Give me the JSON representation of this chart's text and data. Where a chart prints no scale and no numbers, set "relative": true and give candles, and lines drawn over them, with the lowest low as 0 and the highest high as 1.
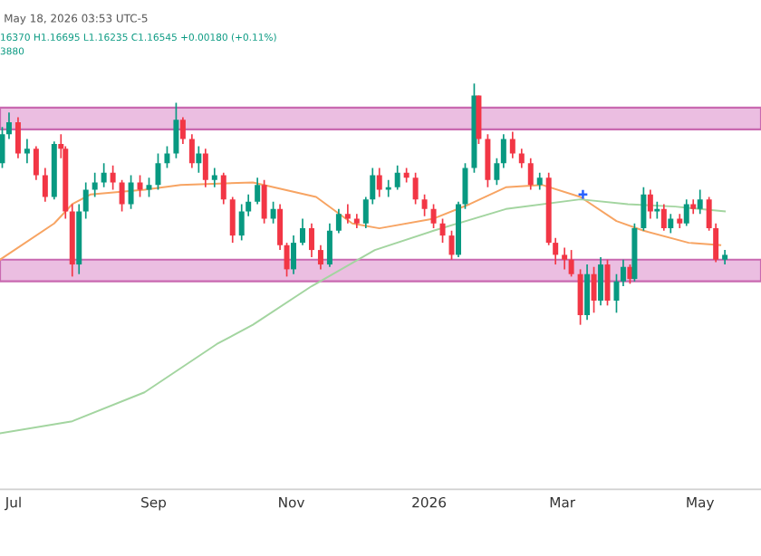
{
  "chart_data": {
    "type": "candlestick",
    "subtitle": "May 18, 2026 03:53 UTC-5",
    "annotations": [
      "16370 H1.16695 L1.16235 C1.16545 +0.00180 (+0.11%)",
      "3880"
    ],
    "relative": true,
    "tick_labels": "x",
    "grid": false,
    "xlim": [
      "2025-06-25",
      "2026-05-28"
    ],
    "xticks": [
      {
        "value": "2025-07-01",
        "label": "Jul"
      },
      {
        "value": "2025-09-01",
        "label": "Sep"
      },
      {
        "value": "2025-11-01",
        "label": "Nov"
      },
      {
        "value": "2026-01-01",
        "label": "2026"
      },
      {
        "value": "2026-03-01",
        "label": "Mar"
      },
      {
        "value": "2026-05-01",
        "label": "May"
      }
    ],
    "colors": [
      "#089981",
      "#089981",
      "#f23645",
      "#089981",
      "#f23645",
      "#f23645",
      "#089981",
      "#f23645",
      "#f23645",
      "#f23645",
      "#089981",
      "#089981",
      "#089981",
      "#089981",
      "#f23645",
      "#f23645",
      "#089981",
      "#f23645",
      "#089981",
      "#089981",
      "#089981",
      "#089981",
      "#f23645",
      "#f23645",
      "#089981",
      "#f23645",
      "#089981",
      "#f23645",
      "#f23645",
      "#089981",
      "#089981",
      "#089981",
      "#f23645",
      "#089981",
      "#f23645",
      "#f23645",
      "#089981",
      "#089981",
      "#f23645",
      "#f23645",
      "#089981",
      "#089981",
      "#f23645",
      "#f23645",
      "#089981",
      "#089981",
      "#f23645",
      "#089981",
      "#089981",
      "#f23645",
      "#f23645",
      "#f23645",
      "#f23645",
      "#f23645",
      "#f23645",
      "#089981",
      "#089981",
      "#089981",
      "#f23645",
      "#f23645",
      "#089981",
      "#089981",
      "#f23645",
      "#f23645",
      "#f23645",
      "#089981",
      "#f23645",
      "#f23645",
      "#f23645",
      "#f23645",
      "#f23645",
      "#089981",
      "#f23645",
      "#089981",
      "#f23645",
      "#089981",
      "#089981",
      "#f23645",
      "#089981",
      "#089981",
      "#f23645",
      "#089981",
      "#f23645",
      "#089981",
      "#f23645",
      "#089981",
      "#f23645",
      "#089981",
      "#f23645",
      "#f23645",
      "#089981"
    ],
    "x": [
      "2025-06-26",
      "2025-06-29",
      "2025-07-03",
      "2025-07-07",
      "2025-07-11",
      "2025-07-15",
      "2025-07-19",
      "2025-07-22",
      "2025-07-24",
      "2025-07-27",
      "2025-07-30",
      "2025-08-02",
      "2025-08-06",
      "2025-08-10",
      "2025-08-14",
      "2025-08-18",
      "2025-08-22",
      "2025-08-26",
      "2025-08-30",
      "2025-09-03",
      "2025-09-07",
      "2025-09-11",
      "2025-09-14",
      "2025-09-18",
      "2025-09-21",
      "2025-09-24",
      "2025-09-28",
      "2025-10-02",
      "2025-10-06",
      "2025-10-10",
      "2025-10-13",
      "2025-10-17",
      "2025-10-20",
      "2025-10-24",
      "2025-10-27",
      "2025-10-30",
      "2025-11-02",
      "2025-11-06",
      "2025-11-10",
      "2025-11-14",
      "2025-11-18",
      "2025-11-22",
      "2025-11-26",
      "2025-11-30",
      "2025-12-04",
      "2025-12-07",
      "2025-12-10",
      "2025-12-14",
      "2025-12-18",
      "2025-12-22",
      "2025-12-26",
      "2025-12-30",
      "2026-01-03",
      "2026-01-07",
      "2026-01-11",
      "2026-01-14",
      "2026-01-17",
      "2026-01-21",
      "2026-01-23",
      "2026-01-27",
      "2026-01-31",
      "2026-02-03",
      "2026-02-07",
      "2026-02-11",
      "2026-02-15",
      "2026-02-19",
      "2026-02-23",
      "2026-02-26",
      "2026-03-02",
      "2026-03-05",
      "2026-03-09",
      "2026-03-12",
      "2026-03-15",
      "2026-03-18",
      "2026-03-21",
      "2026-03-25",
      "2026-03-28",
      "2026-03-31",
      "2026-04-02",
      "2026-04-06",
      "2026-04-09",
      "2026-04-12",
      "2026-04-15",
      "2026-04-18",
      "2026-04-22",
      "2026-04-25",
      "2026-04-28",
      "2026-05-01",
      "2026-05-05",
      "2026-05-08",
      "2026-05-12"
    ],
    "ohlc": [
      [
        0.67,
        0.82,
        0.65,
        0.79
      ],
      [
        0.79,
        0.88,
        0.77,
        0.84
      ],
      [
        0.84,
        0.86,
        0.69,
        0.71
      ],
      [
        0.71,
        0.77,
        0.67,
        0.73
      ],
      [
        0.73,
        0.74,
        0.6,
        0.62
      ],
      [
        0.62,
        0.65,
        0.51,
        0.53
      ],
      [
        0.53,
        0.76,
        0.52,
        0.75
      ],
      [
        0.75,
        0.79,
        0.69,
        0.73
      ],
      [
        0.73,
        0.74,
        0.44,
        0.47
      ],
      [
        0.47,
        0.5,
        0.2,
        0.25
      ],
      [
        0.25,
        0.5,
        0.21,
        0.47
      ],
      [
        0.47,
        0.59,
        0.44,
        0.56
      ],
      [
        0.56,
        0.63,
        0.53,
        0.59
      ],
      [
        0.59,
        0.67,
        0.57,
        0.63
      ],
      [
        0.63,
        0.66,
        0.56,
        0.59
      ],
      [
        0.59,
        0.6,
        0.47,
        0.5
      ],
      [
        0.5,
        0.62,
        0.48,
        0.59
      ],
      [
        0.59,
        0.62,
        0.53,
        0.56
      ],
      [
        0.56,
        0.61,
        0.53,
        0.58
      ],
      [
        0.58,
        0.71,
        0.56,
        0.67
      ],
      [
        0.67,
        0.74,
        0.65,
        0.71
      ],
      [
        0.71,
        0.92,
        0.69,
        0.85
      ],
      [
        0.85,
        0.86,
        0.75,
        0.77
      ],
      [
        0.77,
        0.79,
        0.65,
        0.67
      ],
      [
        0.67,
        0.74,
        0.63,
        0.71
      ],
      [
        0.71,
        0.73,
        0.57,
        0.6
      ],
      [
        0.6,
        0.65,
        0.57,
        0.62
      ],
      [
        0.62,
        0.63,
        0.5,
        0.52
      ],
      [
        0.52,
        0.53,
        0.34,
        0.37
      ],
      [
        0.37,
        0.5,
        0.35,
        0.47
      ],
      [
        0.47,
        0.54,
        0.45,
        0.51
      ],
      [
        0.51,
        0.61,
        0.5,
        0.58
      ],
      [
        0.58,
        0.6,
        0.42,
        0.44
      ],
      [
        0.44,
        0.51,
        0.42,
        0.48
      ],
      [
        0.48,
        0.5,
        0.31,
        0.33
      ],
      [
        0.33,
        0.34,
        0.2,
        0.23
      ],
      [
        0.23,
        0.37,
        0.21,
        0.34
      ],
      [
        0.34,
        0.44,
        0.33,
        0.4
      ],
      [
        0.4,
        0.42,
        0.28,
        0.31
      ],
      [
        0.31,
        0.33,
        0.23,
        0.25
      ],
      [
        0.25,
        0.42,
        0.24,
        0.39
      ],
      [
        0.39,
        0.48,
        0.38,
        0.46
      ],
      [
        0.46,
        0.5,
        0.42,
        0.44
      ],
      [
        0.44,
        0.46,
        0.4,
        0.42
      ],
      [
        0.42,
        0.53,
        0.4,
        0.52
      ],
      [
        0.52,
        0.65,
        0.5,
        0.62
      ],
      [
        0.62,
        0.65,
        0.53,
        0.56
      ],
      [
        0.56,
        0.6,
        0.53,
        0.57
      ],
      [
        0.57,
        0.66,
        0.56,
        0.63
      ],
      [
        0.63,
        0.65,
        0.59,
        0.61
      ],
      [
        0.61,
        0.63,
        0.5,
        0.52
      ],
      [
        0.52,
        0.54,
        0.45,
        0.48
      ],
      [
        0.48,
        0.5,
        0.4,
        0.42
      ],
      [
        0.42,
        0.44,
        0.34,
        0.37
      ],
      [
        0.37,
        0.39,
        0.27,
        0.29
      ],
      [
        0.29,
        0.51,
        0.28,
        0.5
      ],
      [
        0.5,
        0.67,
        0.48,
        0.65
      ],
      [
        0.65,
        1.0,
        0.63,
        0.95
      ],
      [
        0.95,
        0.95,
        0.75,
        0.77
      ],
      [
        0.77,
        0.79,
        0.57,
        0.6
      ],
      [
        0.6,
        0.69,
        0.58,
        0.67
      ],
      [
        0.67,
        0.79,
        0.65,
        0.77
      ],
      [
        0.77,
        0.8,
        0.69,
        0.71
      ],
      [
        0.71,
        0.73,
        0.65,
        0.67
      ],
      [
        0.67,
        0.69,
        0.56,
        0.58
      ],
      [
        0.58,
        0.63,
        0.56,
        0.61
      ],
      [
        0.61,
        0.63,
        0.33,
        0.34
      ],
      [
        0.34,
        0.36,
        0.25,
        0.29
      ],
      [
        0.29,
        0.32,
        0.23,
        0.27
      ],
      [
        0.27,
        0.31,
        0.2,
        0.21
      ],
      [
        0.21,
        0.23,
        0.0,
        0.04
      ],
      [
        0.04,
        0.25,
        0.02,
        0.21
      ],
      [
        0.21,
        0.24,
        0.05,
        0.1
      ],
      [
        0.1,
        0.28,
        0.08,
        0.25
      ],
      [
        0.25,
        0.27,
        0.08,
        0.1
      ],
      [
        0.1,
        0.21,
        0.05,
        0.18
      ],
      [
        0.18,
        0.27,
        0.16,
        0.24
      ],
      [
        0.24,
        0.25,
        0.17,
        0.19
      ],
      [
        0.19,
        0.42,
        0.18,
        0.4
      ],
      [
        0.4,
        0.57,
        0.39,
        0.54
      ],
      [
        0.54,
        0.56,
        0.44,
        0.47
      ],
      [
        0.47,
        0.51,
        0.44,
        0.48
      ],
      [
        0.48,
        0.5,
        0.39,
        0.4
      ],
      [
        0.4,
        0.46,
        0.38,
        0.44
      ],
      [
        0.44,
        0.46,
        0.4,
        0.42
      ],
      [
        0.42,
        0.52,
        0.41,
        0.5
      ],
      [
        0.5,
        0.52,
        0.46,
        0.48
      ],
      [
        0.48,
        0.56,
        0.46,
        0.52
      ],
      [
        0.52,
        0.53,
        0.39,
        0.4
      ],
      [
        0.4,
        0.42,
        0.26,
        0.27
      ],
      [
        0.27,
        0.31,
        0.25,
        0.29
      ]
    ],
    "series": [
      {
        "type": "line",
        "color": "#f7a463",
        "x": [
          "2025-06-25",
          "2025-07-19",
          "2025-07-27",
          "2025-08-04",
          "2025-08-28",
          "2025-09-13",
          "2025-10-15",
          "2025-11-12",
          "2025-11-28",
          "2025-12-10",
          "2026-01-03",
          "2026-01-19",
          "2026-02-04",
          "2026-02-20",
          "2026-03-09",
          "2026-03-25",
          "2026-04-06",
          "2026-04-26",
          "2026-05-10"
        ],
        "values": [
          0.27,
          0.42,
          0.5,
          0.54,
          0.56,
          0.58,
          0.59,
          0.53,
          0.42,
          0.4,
          0.44,
          0.5,
          0.57,
          0.58,
          0.53,
          0.43,
          0.39,
          0.34,
          0.33
        ]
      },
      {
        "type": "line",
        "color": "#a3d5a0",
        "x": [
          "2025-06-25",
          "2025-07-27",
          "2025-08-28",
          "2025-09-29",
          "2025-10-15",
          "2025-11-10",
          "2025-12-08",
          "2026-01-03",
          "2026-02-04",
          "2026-03-09",
          "2026-03-30",
          "2026-04-20",
          "2026-05-12"
        ],
        "values": [
          -0.45,
          -0.4,
          -0.28,
          -0.08,
          0.0,
          0.16,
          0.31,
          0.39,
          0.48,
          0.52,
          0.5,
          0.49,
          0.47
        ]
      }
    ],
    "bands": [
      {
        "axis": "y",
        "from": 0.81,
        "to": 0.9,
        "color": "#e8b3dc"
      },
      {
        "axis": "y",
        "from": 0.18,
        "to": 0.27,
        "color": "#e8b3dc"
      }
    ]
  }
}
